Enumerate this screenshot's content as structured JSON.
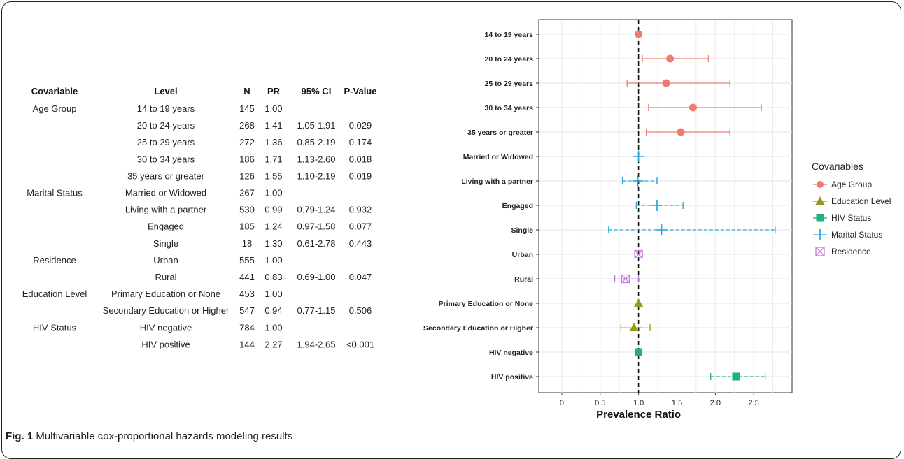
{
  "table": {
    "headers": [
      "Covariable",
      "Level",
      "N",
      "PR",
      "95% CI",
      "P-Value"
    ],
    "rows": [
      [
        "Age Group",
        "14 to 19 years",
        "145",
        "1.00",
        "",
        ""
      ],
      [
        "",
        "20 to 24 years",
        "268",
        "1.41",
        "1.05-1.91",
        "0.029"
      ],
      [
        "",
        "25 to 29 years",
        "272",
        "1.36",
        "0.85-2.19",
        "0.174"
      ],
      [
        "",
        "30 to 34 years",
        "186",
        "1.71",
        "1.13-2.60",
        "0.018"
      ],
      [
        "",
        "35 years or greater",
        "126",
        "1.55",
        "1.10-2.19",
        "0.019"
      ],
      [
        "Marital Status",
        "Married or Widowed",
        "267",
        "1.00",
        "",
        ""
      ],
      [
        "",
        "Living with a partner",
        "530",
        "0.99",
        "0.79-1.24",
        "0.932"
      ],
      [
        "",
        "Engaged",
        "185",
        "1.24",
        "0.97-1.58",
        "0.077"
      ],
      [
        "",
        "Single",
        "18",
        "1.30",
        "0.61-2.78",
        "0.443"
      ],
      [
        "Residence",
        "Urban",
        "555",
        "1.00",
        "",
        ""
      ],
      [
        "",
        "Rural",
        "441",
        "0.83",
        "0.69-1.00",
        "0.047"
      ],
      [
        "Education Level",
        "Primary Education or None",
        "453",
        "1.00",
        "",
        ""
      ],
      [
        "",
        "Secondary Education or Higher",
        "547",
        "0.94",
        "0.77-1.15",
        "0.506"
      ],
      [
        "HIV Status",
        "HIV negative",
        "784",
        "1.00",
        "",
        ""
      ],
      [
        "",
        "HIV positive",
        "144",
        "2.27",
        "1.94-2.65",
        "<0.001"
      ]
    ]
  },
  "chart_data": {
    "type": "scatter",
    "xlabel": "Prevalence Ratio",
    "ylabel": "",
    "xlim": [
      -0.3,
      3.0
    ],
    "xticks": [
      0,
      0.5,
      1.0,
      1.5,
      2.0,
      2.5
    ],
    "xtick_labels": [
      "0",
      "0.5",
      "1.0",
      "1.5",
      "2.0",
      "2.5"
    ],
    "reference_line": 1.0,
    "grid": true,
    "legend_placement": "right",
    "legend_title": "Covariables",
    "categories": [
      "14 to 19 years",
      "20 to 24 years",
      "25 to 29 years",
      "30 to 34 years",
      "35 years or greater",
      "Married or Widowed",
      "Living with a partner",
      "Engaged",
      "Single",
      "Urban",
      "Rural",
      "Primary Education or None",
      "Secondary Education or Higher",
      "HIV negative",
      "HIV positive"
    ],
    "series": [
      {
        "name": "Age Group",
        "color": "#f07b72",
        "marker": "circle",
        "line": "solid",
        "points": [
          {
            "y": "14 to 19 years",
            "x": 1.0
          },
          {
            "y": "20 to 24 years",
            "x": 1.41,
            "lo": 1.05,
            "hi": 1.91
          },
          {
            "y": "25 to 29 years",
            "x": 1.36,
            "lo": 0.85,
            "hi": 2.19
          },
          {
            "y": "30 to 34 years",
            "x": 1.71,
            "lo": 1.13,
            "hi": 2.6
          },
          {
            "y": "35 years or greater",
            "x": 1.55,
            "lo": 1.1,
            "hi": 2.19
          }
        ]
      },
      {
        "name": "Education Level",
        "color": "#9a9a1a",
        "marker": "triangle",
        "line": "dotted",
        "points": [
          {
            "y": "Primary Education or None",
            "x": 1.0
          },
          {
            "y": "Secondary Education or Higher",
            "x": 0.94,
            "lo": 0.77,
            "hi": 1.15
          }
        ]
      },
      {
        "name": "HIV Status",
        "color": "#1db37a",
        "marker": "square",
        "line": "dashed",
        "points": [
          {
            "y": "HIV negative",
            "x": 1.0
          },
          {
            "y": "HIV positive",
            "x": 2.27,
            "lo": 1.94,
            "hi": 2.65
          }
        ]
      },
      {
        "name": "Marital Status",
        "color": "#22a6dd",
        "marker": "plus",
        "line": "dashed",
        "points": [
          {
            "y": "Married or Widowed",
            "x": 1.0
          },
          {
            "y": "Living with a partner",
            "x": 0.99,
            "lo": 0.79,
            "hi": 1.24
          },
          {
            "y": "Engaged",
            "x": 1.24,
            "lo": 0.97,
            "hi": 1.58
          },
          {
            "y": "Single",
            "x": 1.3,
            "lo": 0.61,
            "hi": 2.78
          }
        ]
      },
      {
        "name": "Residence",
        "color": "#c878e0",
        "marker": "boxx",
        "line": "dotted",
        "points": [
          {
            "y": "Urban",
            "x": 1.0
          },
          {
            "y": "Rural",
            "x": 0.83,
            "lo": 0.69,
            "hi": 1.0
          }
        ]
      }
    ]
  },
  "caption": {
    "label": "Fig. 1",
    "text": " Multivariable cox-proportional hazards modeling results"
  }
}
